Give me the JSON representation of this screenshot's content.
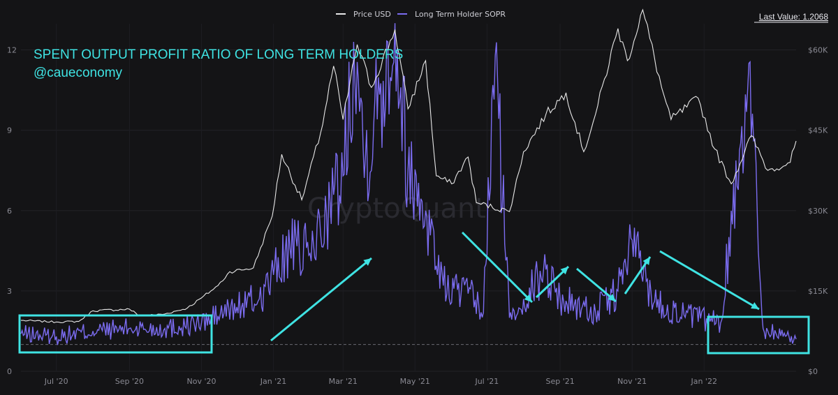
{
  "legend": {
    "price_label": "Price USD",
    "sopr_label": "Long Term Holder SOPR"
  },
  "last_value_text": "Last Value: 1.2068",
  "annotation": {
    "title": "SPENT OUTPUT PROFIT RATIO OF LONG TERM HOLDERS",
    "author": "@caueconomy"
  },
  "watermark": "CryptoQuant",
  "colors": {
    "background": "#141416",
    "price": "#e8e8e8",
    "sopr": "#7b6cf0",
    "annotation": "#3fe3e3",
    "grid": "#26262b"
  },
  "chart_data": {
    "type": "line",
    "x_range": [
      "2020-06-01",
      "2022-03-20"
    ],
    "x_tick_labels": [
      {
        "label": "Jul '20",
        "date": "2020-07-01"
      },
      {
        "label": "Sep '20",
        "date": "2020-09-01"
      },
      {
        "label": "Nov '20",
        "date": "2020-11-01"
      },
      {
        "label": "Jan '21",
        "date": "2021-01-01"
      },
      {
        "label": "Mar '21",
        "date": "2021-03-01"
      },
      {
        "label": "May '21",
        "date": "2021-05-01"
      },
      {
        "label": "Jul '21",
        "date": "2021-07-01"
      },
      {
        "label": "Sep '21",
        "date": "2021-09-01"
      },
      {
        "label": "Nov '21",
        "date": "2021-11-01"
      },
      {
        "label": "Jan '22",
        "date": "2022-01-01"
      }
    ],
    "y_left": {
      "ticks": [
        "0",
        "3",
        "6",
        "9",
        "12"
      ],
      "range": [
        0,
        13.5
      ]
    },
    "y_right": {
      "ticks": [
        "$0",
        "$15K",
        "$30K",
        "$45K",
        "$60K"
      ],
      "range": [
        0,
        67500
      ]
    },
    "reference_line": {
      "y": 1.0
    },
    "series": [
      {
        "name": "Price USD",
        "axis": "right",
        "points": [
          [
            "2020-06-01",
            9500
          ],
          [
            "2020-07-01",
            9200
          ],
          [
            "2020-07-20",
            9300
          ],
          [
            "2020-08-01",
            11300
          ],
          [
            "2020-09-01",
            11600
          ],
          [
            "2020-09-10",
            10300
          ],
          [
            "2020-10-01",
            10700
          ],
          [
            "2020-10-20",
            11800
          ],
          [
            "2020-11-01",
            13700
          ],
          [
            "2020-11-15",
            16000
          ],
          [
            "2020-11-25",
            18600
          ],
          [
            "2020-12-15",
            19300
          ],
          [
            "2020-12-31",
            29000
          ],
          [
            "2021-01-08",
            40500
          ],
          [
            "2021-01-25",
            32000
          ],
          [
            "2021-02-10",
            44500
          ],
          [
            "2021-02-21",
            57000
          ],
          [
            "2021-03-01",
            47000
          ],
          [
            "2021-03-13",
            61000
          ],
          [
            "2021-03-25",
            53000
          ],
          [
            "2021-04-14",
            63800
          ],
          [
            "2021-04-25",
            49000
          ],
          [
            "2021-05-10",
            58000
          ],
          [
            "2021-05-19",
            36500
          ],
          [
            "2021-06-01",
            35000
          ],
          [
            "2021-06-15",
            40000
          ],
          [
            "2021-06-22",
            31500
          ],
          [
            "2021-07-20",
            29800
          ],
          [
            "2021-08-01",
            41000
          ],
          [
            "2021-08-20",
            48000
          ],
          [
            "2021-09-06",
            52000
          ],
          [
            "2021-09-21",
            41000
          ],
          [
            "2021-10-01",
            48000
          ],
          [
            "2021-10-20",
            64000
          ],
          [
            "2021-10-28",
            58000
          ],
          [
            "2021-11-10",
            67500
          ],
          [
            "2021-11-26",
            53000
          ],
          [
            "2021-12-04",
            47000
          ],
          [
            "2021-12-27",
            51000
          ],
          [
            "2022-01-10",
            41500
          ],
          [
            "2022-01-24",
            35000
          ],
          [
            "2022-02-10",
            44000
          ],
          [
            "2022-02-24",
            37500
          ],
          [
            "2022-03-15",
            39000
          ],
          [
            "2022-03-20",
            43000
          ]
        ]
      },
      {
        "name": "Long Term Holder SOPR",
        "axis": "left",
        "points": [
          [
            "2020-06-01",
            1.4
          ],
          [
            "2020-07-01",
            1.3
          ],
          [
            "2020-08-01",
            1.5
          ],
          [
            "2020-09-01",
            1.6
          ],
          [
            "2020-10-01",
            1.6
          ],
          [
            "2020-11-01",
            1.8
          ],
          [
            "2020-12-01",
            2.4
          ],
          [
            "2020-12-20",
            2.7
          ],
          [
            "2021-01-01",
            3.6
          ],
          [
            "2021-01-15",
            4.6
          ],
          [
            "2021-02-01",
            4.4
          ],
          [
            "2021-02-15",
            5.9
          ],
          [
            "2021-03-01",
            7.3
          ],
          [
            "2021-03-10",
            12.3
          ],
          [
            "2021-03-20",
            8.0
          ],
          [
            "2021-04-14",
            13.0
          ],
          [
            "2021-04-25",
            7.5
          ],
          [
            "2021-05-10",
            6.0
          ],
          [
            "2021-05-25",
            3.2
          ],
          [
            "2021-06-15",
            2.9
          ],
          [
            "2021-06-28",
            2.2
          ],
          [
            "2021-07-08",
            11.8
          ],
          [
            "2021-07-20",
            2.0
          ],
          [
            "2021-08-01",
            2.7
          ],
          [
            "2021-08-20",
            3.8
          ],
          [
            "2021-09-01",
            2.7
          ],
          [
            "2021-10-01",
            2.2
          ],
          [
            "2021-10-20",
            3.0
          ],
          [
            "2021-11-01",
            4.9
          ],
          [
            "2021-11-20",
            2.6
          ],
          [
            "2021-12-15",
            2.1
          ],
          [
            "2022-01-15",
            1.8
          ],
          [
            "2022-02-08",
            11.5
          ],
          [
            "2022-02-20",
            1.6
          ],
          [
            "2022-03-20",
            1.2
          ]
        ]
      }
    ]
  }
}
